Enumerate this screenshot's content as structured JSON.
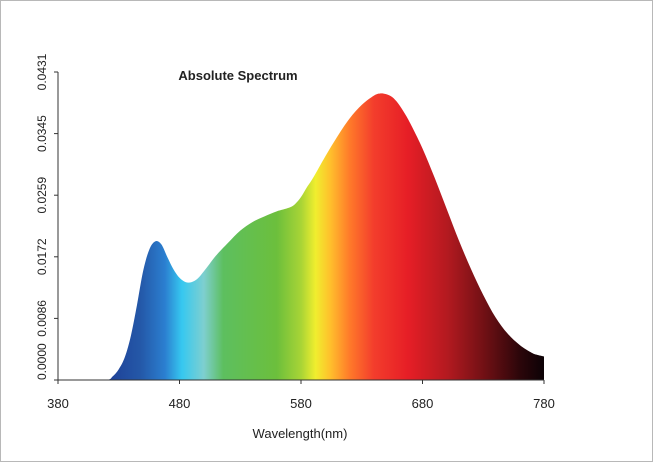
{
  "chart_data": {
    "type": "area",
    "title": "Absolute Spectrum",
    "xlabel": "Wavelength(nm)",
    "ylabel": "",
    "xlim": [
      380,
      780
    ],
    "ylim": [
      0,
      0.0431
    ],
    "x_ticks": [
      "380",
      "480",
      "580",
      "680",
      "780"
    ],
    "y_ticks": [
      "0.0000",
      "0.0086",
      "0.0172",
      "0.0259",
      "0.0345",
      "0.0431"
    ],
    "grid": false,
    "fill": "visible-spectrum gradient by wavelength",
    "series": [
      {
        "x": [
          380,
          400,
          420,
          425,
          430,
          435,
          440,
          445,
          450,
          455,
          460,
          465,
          470,
          475,
          480,
          485,
          490,
          495,
          500,
          505,
          510,
          520,
          530,
          540,
          550,
          560,
          570,
          575,
          580,
          585,
          590,
          600,
          610,
          620,
          630,
          640,
          645,
          650,
          655,
          660,
          665,
          670,
          680,
          690,
          700,
          710,
          720,
          730,
          740,
          750,
          760,
          770,
          775,
          780
        ],
        "y": [
          0,
          0,
          0,
          0.0005,
          0.0015,
          0.0032,
          0.0062,
          0.0105,
          0.0152,
          0.0182,
          0.0194,
          0.019,
          0.0172,
          0.0155,
          0.0143,
          0.0137,
          0.0137,
          0.0142,
          0.0152,
          0.0163,
          0.0174,
          0.0192,
          0.0209,
          0.0221,
          0.0229,
          0.0236,
          0.0241,
          0.0246,
          0.0256,
          0.027,
          0.0283,
          0.0313,
          0.0341,
          0.0366,
          0.0385,
          0.0398,
          0.0401,
          0.04,
          0.0396,
          0.0387,
          0.0374,
          0.0359,
          0.0324,
          0.0283,
          0.0239,
          0.0195,
          0.0155,
          0.0119,
          0.0088,
          0.0065,
          0.0049,
          0.0038,
          0.0035,
          0.0033
        ]
      }
    ]
  }
}
